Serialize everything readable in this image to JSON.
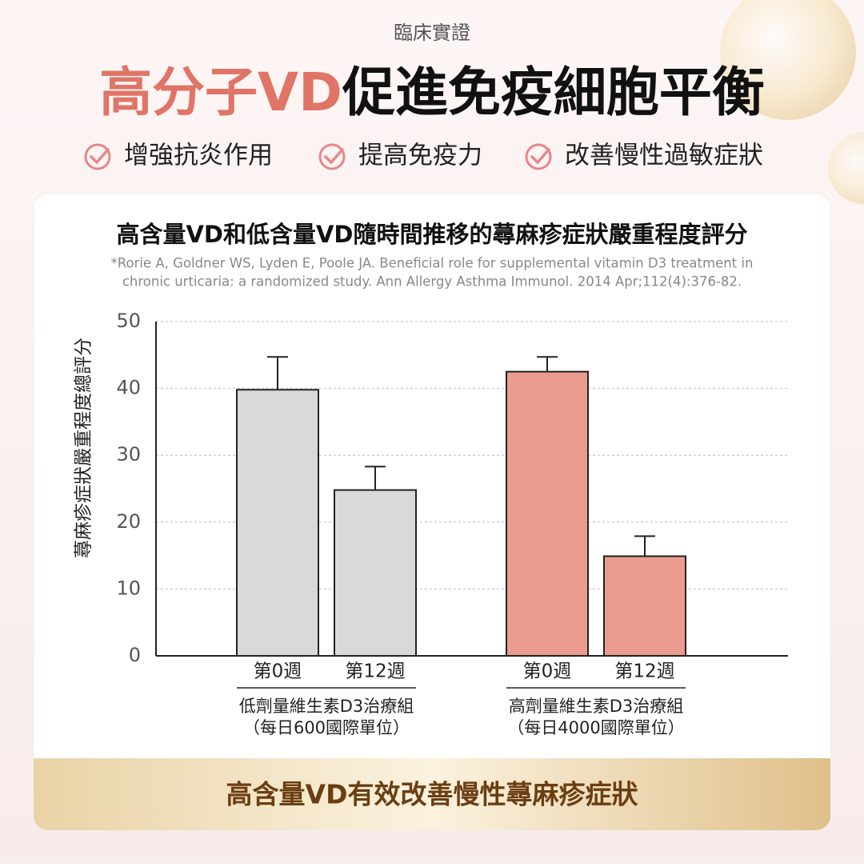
{
  "header": {
    "kicker": "臨床實證",
    "title_highlight": "高分子VD",
    "title_rest": "促進免疫細胞平衡",
    "benefits": [
      "增強抗炎作用",
      "提高免疫力",
      "改善慢性過敏症狀"
    ]
  },
  "chart_data": {
    "type": "bar",
    "title": "高含量VD和低含量VD隨時間推移的蕁麻疹症狀嚴重程度評分",
    "citation": [
      "*Rorie A, Goldner WS, Lyden E, Poole JA. Beneficial role for supplemental vitamin D3 treatment in",
      "chronic urticaria: a randomized study. Ann Allergy Asthma Immunol. 2014 Apr;112(4):376-82."
    ],
    "y_label": "蕁麻疹症狀嚴重程度總評分",
    "ylim": [
      0,
      50
    ],
    "yticks": [
      0,
      10,
      20,
      30,
      40,
      50
    ],
    "grid": true,
    "groups": [
      {
        "lines": [
          "低劑量維生素D3治療組",
          "（每日600國際單位）"
        ],
        "color": "#d9d9d9",
        "categories": [
          "第0週",
          "第12週"
        ],
        "values": [
          39.8,
          24.8
        ],
        "errors": [
          4.9,
          3.5
        ]
      },
      {
        "lines": [
          "高劑量維生素D3治療組",
          "（每日4000國際單位）"
        ],
        "color": "#ec9b8f",
        "categories": [
          "第0週",
          "第12週"
        ],
        "values": [
          42.5,
          14.9
        ],
        "errors": [
          2.2,
          3.0
        ]
      }
    ]
  },
  "footer": "高含量VD有效改善慢性蕁麻疹症狀"
}
